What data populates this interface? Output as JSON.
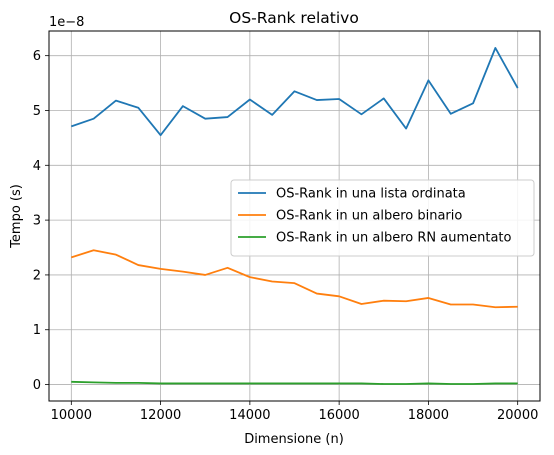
{
  "chart_data": {
    "type": "line",
    "title": "OS-Rank relativo",
    "xlabel": "Dimensione (n)",
    "ylabel": "Tempo (s)",
    "y_offset_label": "1e−8",
    "xlim": [
      9500,
      20500
    ],
    "ylim": [
      -0.3,
      6.45
    ],
    "x_ticks": [
      10000,
      12000,
      14000,
      16000,
      18000,
      20000
    ],
    "y_ticks": [
      0,
      1,
      2,
      3,
      4,
      5,
      6
    ],
    "x_tick_labels": [
      "10000",
      "12000",
      "14000",
      "16000",
      "18000",
      "20000"
    ],
    "y_tick_labels": [
      "0",
      "1",
      "2",
      "3",
      "4",
      "5",
      "6"
    ],
    "grid": true,
    "legend_position": "center-right",
    "x": [
      10000,
      10500,
      11000,
      11500,
      12000,
      12500,
      13000,
      13500,
      14000,
      14500,
      15000,
      15500,
      16000,
      16500,
      17000,
      17500,
      18000,
      18500,
      19000,
      19500,
      20000
    ],
    "series": [
      {
        "name": "OS-Rank in una lista ordinata",
        "color": "#1f77b4",
        "values": [
          4.71,
          4.85,
          5.18,
          5.05,
          4.55,
          5.08,
          4.85,
          4.88,
          5.2,
          4.92,
          5.35,
          5.19,
          5.21,
          4.93,
          5.22,
          4.67,
          5.55,
          4.94,
          5.13,
          6.14,
          5.41
        ]
      },
      {
        "name": "OS-Rank in un albero binario",
        "color": "#ff7f0e",
        "values": [
          2.32,
          2.45,
          2.37,
          2.18,
          2.11,
          2.06,
          2.0,
          2.13,
          1.96,
          1.88,
          1.85,
          1.66,
          1.61,
          1.47,
          1.53,
          1.52,
          1.58,
          1.46,
          1.46,
          1.41,
          1.42
        ]
      },
      {
        "name": "OS-Rank in un albero RN aumentato",
        "color": "#2ca02c",
        "values": [
          0.05,
          0.04,
          0.03,
          0.03,
          0.02,
          0.02,
          0.02,
          0.02,
          0.02,
          0.02,
          0.02,
          0.02,
          0.02,
          0.02,
          0.01,
          0.01,
          0.02,
          0.01,
          0.01,
          0.02,
          0.02
        ]
      }
    ]
  }
}
